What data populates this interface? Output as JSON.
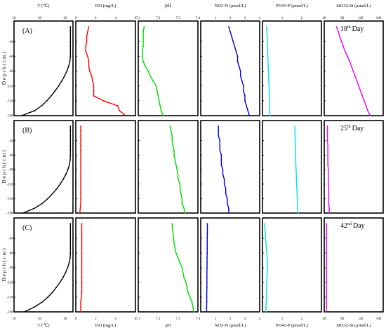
{
  "chart_data": {
    "type": "line",
    "panels": [
      {
        "label": "(A)",
        "day": "18",
        "day_sup": "th",
        "day_word": "Day"
      },
      {
        "label": "(B)",
        "day": "25",
        "day_sup": "th",
        "day_word": "Day"
      },
      {
        "label": "(C)",
        "day": "42",
        "day_sup": "nd",
        "day_word": "Day"
      }
    ],
    "ylabel": "D e p t h   ( c m )",
    "ylim": [
      0,
      180
    ],
    "yticks": [
      "-30",
      "-60",
      "-90",
      "-120",
      "-150",
      "-180"
    ],
    "top_labels": [
      "T (℃)",
      "DO (mg/L)",
      "pH",
      "NO3-N (μmol/L)",
      "PO43-P (μmol/L)",
      "SiO32-Si (μmol/L)"
    ],
    "bottom_labels": [
      "T (℃)",
      "DO (mg/L)",
      "pH",
      "NO3-N (μmol/L)",
      "PO43-P (μmol/L)",
      "SiO32-Si (μmol/L)"
    ],
    "columns": [
      {
        "key": "T",
        "color": "#000000",
        "xlim": [
          10,
          33
        ],
        "ticks": [
          "10",
          "20",
          "30"
        ],
        "tick_values": [
          10,
          20,
          30
        ]
      },
      {
        "key": "DO",
        "color": "#ff0000",
        "xlim": [
          0,
          6
        ],
        "ticks": [
          "0",
          "2",
          "4",
          "6"
        ],
        "tick_values": [
          0,
          2,
          4,
          6
        ]
      },
      {
        "key": "pH",
        "color": "#00dd00",
        "xlim": [
          7.1,
          7.4
        ],
        "ticks": [
          "7.1",
          "7.2",
          "7.3",
          "7.4"
        ],
        "tick_values": [
          7.1,
          7.2,
          7.3,
          7.4
        ]
      },
      {
        "key": "NO3",
        "color": "#0000dd",
        "xlim": [
          0,
          4
        ],
        "ticks": [
          "1",
          "2",
          "3",
          "4"
        ],
        "tick_values": [
          1,
          2,
          3,
          4
        ]
      },
      {
        "key": "PO4",
        "color": "#00e5e5",
        "xlim": [
          0,
          3
        ],
        "ticks": [
          "1",
          "2"
        ],
        "tick_values": [
          1,
          2
        ]
      },
      {
        "key": "Si",
        "color": "#ee00ee",
        "xlim": [
          40,
          170
        ],
        "ticks": [
          "40",
          "80",
          "120",
          "160"
        ],
        "tick_values": [
          40,
          80,
          120,
          160
        ]
      }
    ],
    "depth": [
      0,
      10,
      20,
      30,
      40,
      50,
      60,
      70,
      80,
      90,
      100,
      110,
      120,
      130,
      140,
      150,
      160,
      170,
      180
    ],
    "series": [
      [
        [
          32,
          32,
          32,
          32,
          32,
          32,
          32,
          31.8,
          31.3,
          30.6,
          29.7,
          28.6,
          27.4,
          26.0,
          24.5,
          22.8,
          20.8,
          18.0,
          13.0
        ],
        [
          1.3,
          1.2,
          1.1,
          1.1,
          1.0,
          1.0,
          1.2,
          1.3,
          1.3,
          1.4,
          1.6,
          1.7,
          1.8,
          1.8,
          1.8,
          2.8,
          4.2,
          4.4,
          5.0
        ],
        [
          7.13,
          7.125,
          7.125,
          7.125,
          7.125,
          7.12,
          7.12,
          7.125,
          7.135,
          7.15,
          7.16,
          7.175,
          7.19,
          7.195,
          7.2,
          7.205,
          7.21,
          7.215,
          7.225
        ],
        [
          1.9,
          2.0,
          2.1,
          2.2,
          2.3,
          2.4,
          2.5,
          2.5,
          2.6,
          2.7,
          2.7,
          2.8,
          2.9,
          2.9,
          3.0,
          3.0,
          3.1,
          3.2,
          3.3
        ],
        [
          0.2,
          0.22,
          0.24,
          0.25,
          0.25,
          0.26,
          0.27,
          0.28,
          0.29,
          0.3,
          0.31,
          0.32,
          0.33,
          0.34,
          0.35,
          0.36,
          0.36,
          0.37,
          0.37
        ],
        [
          67,
          71,
          74,
          78,
          82,
          86,
          91,
          96,
          100,
          104,
          108,
          112,
          116,
          120,
          124,
          128,
          132,
          136,
          141
        ]
      ],
      [
        [
          32,
          32,
          32,
          32,
          32,
          32,
          32,
          31.9,
          31.6,
          31.0,
          30.2,
          29.2,
          28.0,
          26.6,
          25.0,
          23.2,
          21.0,
          18.0,
          13.5
        ],
        [
          0.5,
          0.5,
          0.5,
          0.5,
          0.5,
          0.5,
          0.5,
          0.5,
          0.5,
          0.5,
          0.5,
          0.5,
          0.5,
          0.5,
          0.5,
          0.5,
          0.5,
          0.45,
          0.4
        ],
        [
          7.26,
          7.265,
          7.27,
          7.27,
          7.275,
          7.28,
          7.28,
          7.285,
          7.29,
          7.295,
          7.3,
          7.3,
          7.31,
          7.31,
          7.315,
          7.32,
          7.32,
          7.33,
          7.335
        ],
        [
          1.2,
          1.2,
          1.2,
          1.3,
          1.3,
          1.3,
          1.4,
          1.4,
          1.4,
          1.5,
          1.5,
          1.6,
          1.6,
          1.7,
          1.7,
          1.8,
          1.8,
          1.9,
          1.9
        ],
        [
          1.65,
          1.65,
          1.66,
          1.66,
          1.67,
          1.68,
          1.68,
          1.69,
          1.7,
          1.71,
          1.72,
          1.73,
          1.74,
          1.75,
          1.76,
          1.77,
          1.78,
          1.79,
          1.8
        ],
        [
          47,
          47,
          47,
          47,
          48,
          48,
          48,
          48,
          48,
          49,
          49,
          49,
          49,
          50,
          50,
          50,
          50,
          51,
          51
        ]
      ],
      [
        [
          32,
          32,
          32,
          32,
          32,
          32,
          32,
          31.9,
          31.5,
          30.9,
          30.1,
          29.1,
          27.9,
          26.5,
          25.0,
          23.2,
          21.0,
          18.0,
          14.0
        ],
        [
          0.6,
          0.6,
          0.6,
          0.6,
          0.6,
          0.6,
          0.6,
          0.6,
          0.6,
          0.6,
          0.6,
          0.6,
          0.6,
          0.6,
          0.6,
          0.55,
          0.5,
          0.5,
          0.5
        ],
        [
          7.27,
          7.272,
          7.275,
          7.278,
          7.28,
          7.285,
          7.29,
          7.3,
          7.31,
          7.32,
          7.325,
          7.33,
          7.34,
          7.345,
          7.35,
          7.36,
          7.37,
          7.375,
          7.38
        ],
        [
          0.45,
          0.45,
          0.45,
          0.44,
          0.44,
          0.44,
          0.44,
          0.43,
          0.43,
          0.43,
          0.42,
          0.42,
          0.42,
          0.42,
          0.41,
          0.41,
          0.41,
          0.4,
          0.4
        ],
        [
          0.1,
          0.12,
          0.14,
          0.16,
          0.18,
          0.2,
          0.22,
          0.24,
          0.25,
          0.25,
          0.24,
          0.23,
          0.22,
          0.21,
          0.2,
          0.2,
          0.19,
          0.18,
          0.18
        ],
        [
          45,
          45,
          45,
          45,
          45,
          45,
          45,
          45,
          45,
          45,
          45,
          45,
          45,
          45,
          45,
          45,
          45,
          45,
          45
        ]
      ]
    ]
  }
}
